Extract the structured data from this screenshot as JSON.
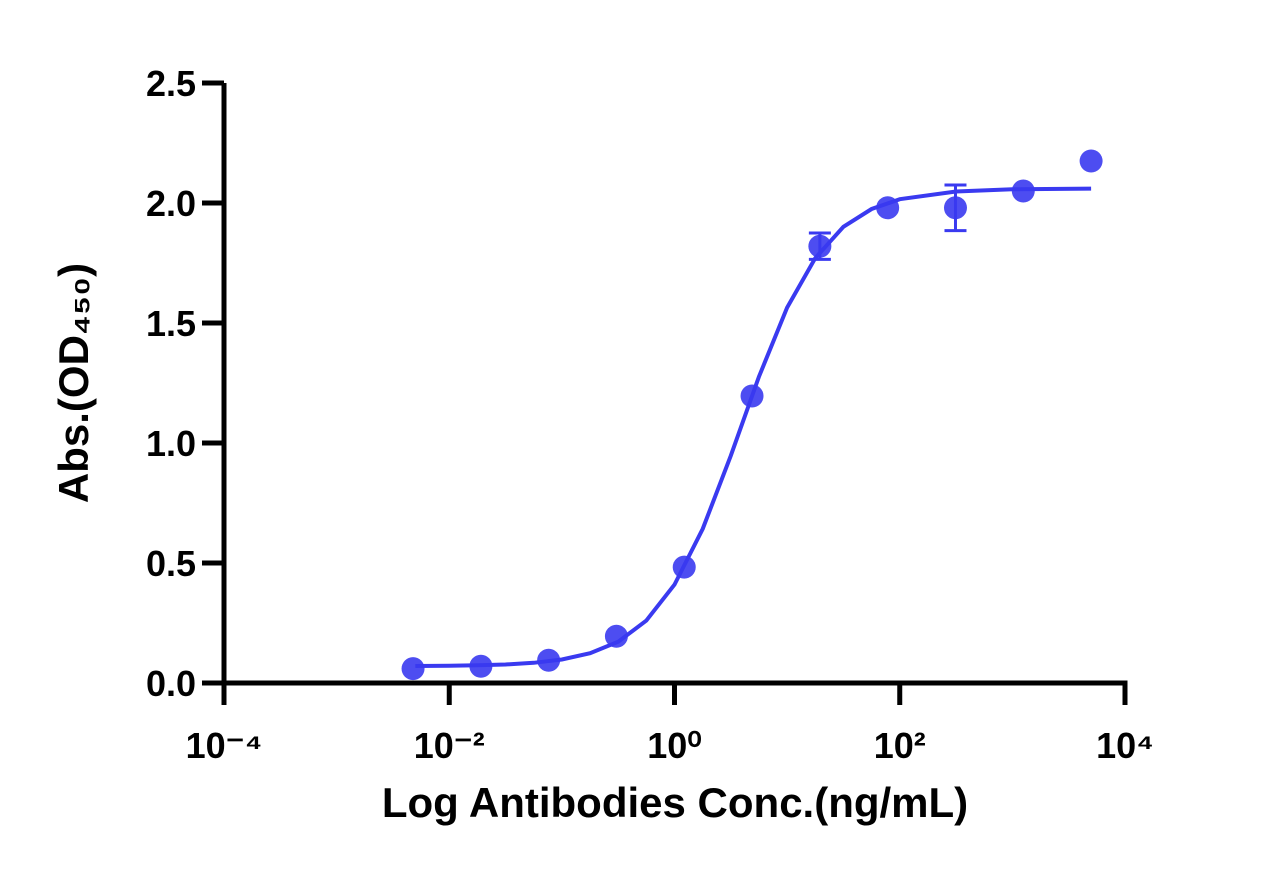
{
  "chart_data": {
    "type": "scatter",
    "xlabel": "Log Antibodies Conc.(ng/mL)",
    "ylabel": "Abs.(OD₄₅₀)",
    "xscale": "log",
    "xlim": [
      0.0001,
      10000
    ],
    "xticks": [
      {
        "value": 0.0001,
        "label": "10⁻⁴"
      },
      {
        "value": 0.01,
        "label": "10⁻²"
      },
      {
        "value": 1,
        "label": "10⁰"
      },
      {
        "value": 100,
        "label": "10²"
      },
      {
        "value": 10000,
        "label": "10⁴"
      }
    ],
    "ylim": [
      0,
      2.5
    ],
    "yticks": [
      {
        "value": 0,
        "label": "0.0"
      },
      0.5,
      {
        "value": 1,
        "label": "1.0"
      },
      1.5,
      {
        "value": 2,
        "label": "2.0"
      },
      2.5
    ],
    "color": "#3a3af0",
    "x": [
      0.00477,
      0.0191,
      0.0763,
      0.305,
      1.22,
      4.88,
      19.53,
      78.125,
      312.5,
      1250,
      5000
    ],
    "values": [
      0.06,
      0.07,
      0.095,
      0.195,
      0.483,
      1.196,
      1.82,
      1.98,
      1.98,
      2.05,
      2.175
    ],
    "errors": [
      null,
      null,
      null,
      null,
      null,
      null,
      0.055,
      null,
      0.095,
      null,
      null
    ],
    "fit": {
      "x": [
        0.005,
        0.01,
        0.0178,
        0.0316,
        0.0562,
        0.1,
        0.178,
        0.316,
        0.562,
        1,
        1.78,
        3.16,
        5.62,
        10,
        17.8,
        31.6,
        56.2,
        100,
        316,
        1000,
        5000
      ],
      "values": [
        0.071,
        0.072,
        0.074,
        0.077,
        0.084,
        0.098,
        0.124,
        0.172,
        0.26,
        0.41,
        0.642,
        0.947,
        1.276,
        1.564,
        1.771,
        1.901,
        1.975,
        2.016,
        2.048,
        2.057,
        2.06
      ]
    }
  }
}
